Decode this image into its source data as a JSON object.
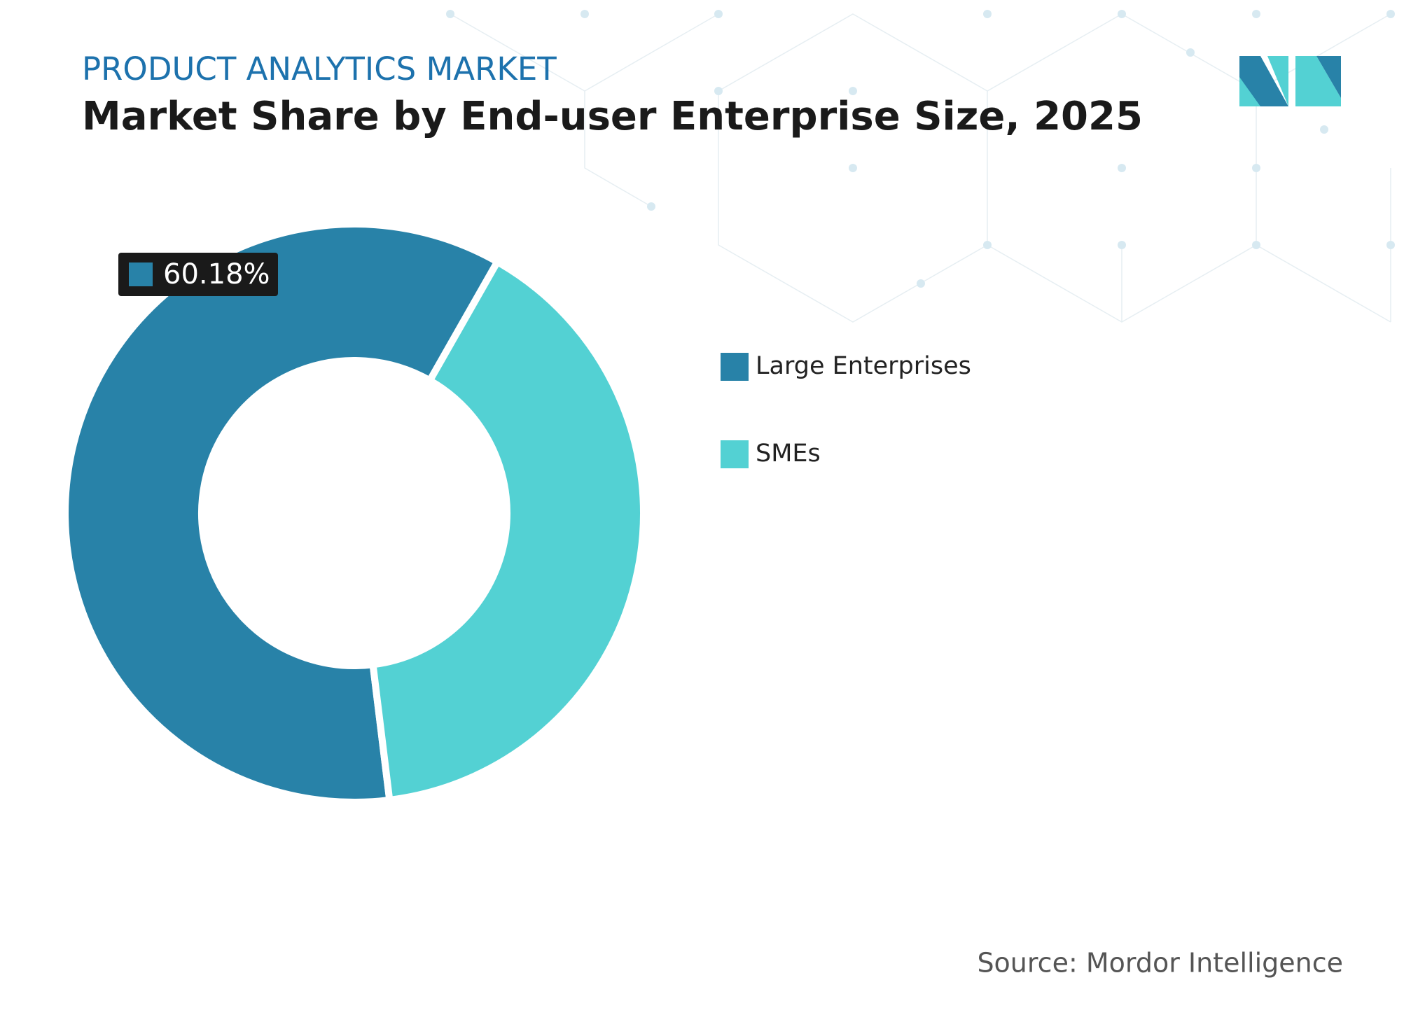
{
  "chart_data": {
    "type": "pie",
    "kicker": "PRODUCT ANALYTICS MARKET",
    "title": "Market Share by End-user Enterprise Size, 2025",
    "categories": [
      "Large Enterprises",
      "SMEs"
    ],
    "values": [
      60.18,
      39.82
    ],
    "value_labels": [
      "60.18%",
      null
    ],
    "colors": [
      "#2882a8",
      "#53d1d3"
    ],
    "source": "Source: Mordor Intelligence"
  }
}
